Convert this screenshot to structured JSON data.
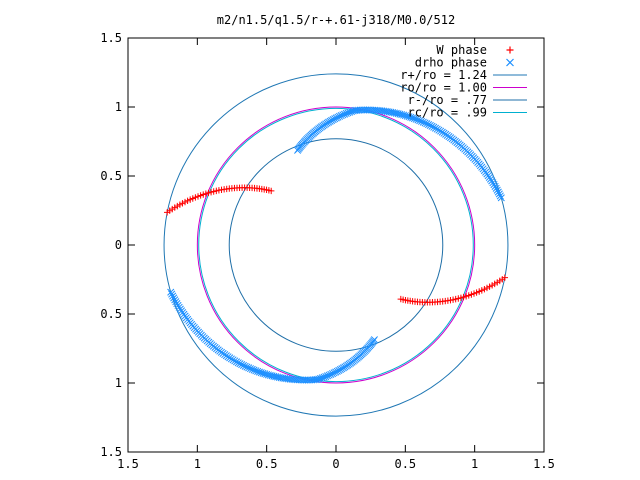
{
  "chart_data": {
    "type": "scatter",
    "title": "m2/n1.5/q1.5/r-+.61-j318/M0.0/512",
    "xlim": [
      -1.5,
      1.5
    ],
    "ylim": [
      -1.5,
      1.5
    ],
    "x_ticks": [
      -1.5,
      -1,
      -0.5,
      0,
      0.5,
      1,
      1.5
    ],
    "y_ticks": [
      -1.5,
      -1,
      -0.5,
      0,
      0.5,
      1,
      1.5
    ],
    "x_tick_labels": [
      "1.5",
      "1",
      "0.5",
      "0",
      "0.5",
      "1",
      "1.5"
    ],
    "y_tick_labels": [
      "1.5",
      "1",
      "0.5",
      "0",
      "0.5",
      "1",
      "1.5"
    ],
    "legend_position": "top-right",
    "series": [
      {
        "name": "W phase",
        "kind": "points",
        "marker": "+",
        "color": "#ff0000",
        "arcs": [
          {
            "r_start": 1.24,
            "r_end": 0.61,
            "theta_start_deg": 169,
            "theta_end_deg": 140
          },
          {
            "r_start": 1.24,
            "r_end": 0.61,
            "theta_start_deg": -11,
            "theta_end_deg": -40
          }
        ]
      },
      {
        "name": "drho phase",
        "kind": "points",
        "marker": "x",
        "color": "#1e90ff",
        "arcs": [
          {
            "r_start": 0.74,
            "r_end": 0.985,
            "theta_start_deg": 112,
            "theta_end_deg": 82
          },
          {
            "r_start": 0.985,
            "r_end": 1.24,
            "theta_start_deg": 82,
            "theta_end_deg": 16
          },
          {
            "r_start": 0.74,
            "r_end": 0.985,
            "theta_start_deg": -68,
            "theta_end_deg": -98
          },
          {
            "r_start": 0.985,
            "r_end": 1.24,
            "theta_start_deg": -98,
            "theta_end_deg": -164
          }
        ]
      },
      {
        "name": "r+/ro = 1.24",
        "kind": "circle",
        "radius": 1.24,
        "color": "#1f77b4"
      },
      {
        "name": "ro/ro = 1.00",
        "kind": "circle",
        "radius": 1.0,
        "color": "#cc00cc"
      },
      {
        "name": "r-/ro = .77",
        "kind": "circle",
        "radius": 0.77,
        "color": "#1f6fa8"
      },
      {
        "name": "rc/ro = .99",
        "kind": "circle",
        "radius": 0.99,
        "color": "#00b0d0"
      }
    ]
  }
}
